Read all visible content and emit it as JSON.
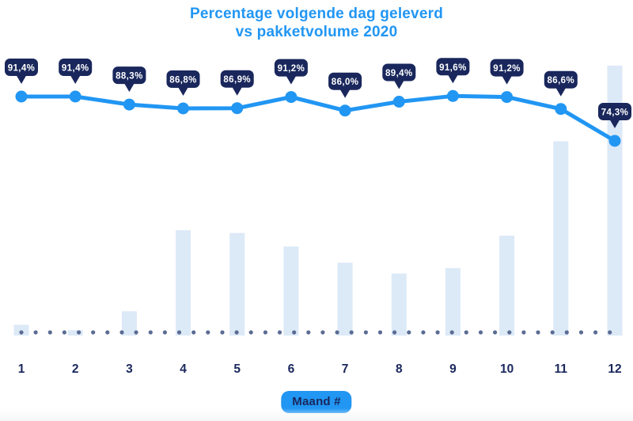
{
  "title": {
    "line1": "Percentage volgende dag geleverd",
    "line2": "vs pakketvolume 2020"
  },
  "x_axis": {
    "badge_label": "Maand #",
    "categories": [
      "1",
      "2",
      "3",
      "4",
      "5",
      "6",
      "7",
      "8",
      "9",
      "10",
      "11",
      "12"
    ]
  },
  "chart_data": {
    "type": "line",
    "title": "Percentage volgende dag geleverd vs pakketvolume 2020",
    "xlabel": "Maand #",
    "ylabel": "",
    "legend": false,
    "gridlines": false,
    "baseline_style": "dotted",
    "categories": [
      1,
      2,
      3,
      4,
      5,
      6,
      7,
      8,
      9,
      10,
      11,
      12
    ],
    "series": [
      {
        "name": "Percentage volgende dag geleverd",
        "type": "line",
        "unit": "%",
        "values": [
          91.4,
          91.4,
          88.3,
          86.8,
          86.9,
          91.2,
          86.0,
          89.4,
          91.6,
          91.2,
          86.6,
          74.3
        ],
        "point_labels": [
          "91,4%",
          "91,4%",
          "88,3%",
          "86,8%",
          "86,9%",
          "91,2%",
          "86,0%",
          "89,4%",
          "91,6%",
          "91,2%",
          "86,6%",
          "74,3%"
        ]
      },
      {
        "name": "Pakketvolume 2020",
        "type": "bar",
        "unit": "percent of max volume (estimated, no value axis shown)",
        "values": [
          4,
          2,
          9,
          39,
          38,
          33,
          27,
          23,
          25,
          37,
          72,
          100
        ]
      }
    ]
  },
  "colors": {
    "accent_blue": "#2196F3",
    "navy": "#19275C",
    "bar_fill": "#DCE9F7",
    "baseline_dot": "#5A6C94",
    "badge_text": "#FFFFFF",
    "background": "#FFFFFF"
  }
}
